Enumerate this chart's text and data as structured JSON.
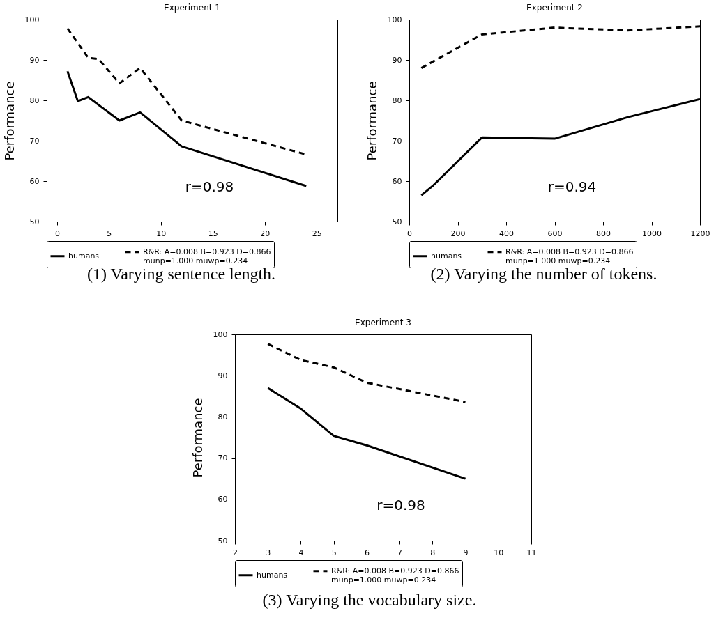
{
  "chart_data": [
    {
      "type": "line",
      "title": "Experiment 1",
      "ylabel": "Performance",
      "xlim": [
        -1,
        27
      ],
      "xticks": [
        0,
        5,
        10,
        15,
        20,
        25
      ],
      "ylim": [
        50,
        100
      ],
      "yticks": [
        50,
        60,
        70,
        80,
        90,
        100
      ],
      "grid": false,
      "legend": "bottom",
      "series": [
        {
          "name": "humans",
          "color": "#000000",
          "line_style": "solid",
          "x": [
            1,
            2,
            3,
            6,
            8,
            12,
            24
          ],
          "values": [
            87.2,
            79.8,
            80.8,
            75,
            77,
            68.6,
            58.8
          ]
        },
        {
          "name": "R&R: A=0.008 B=0.923 D=0.866\n munp=1.000 muwp=0.234",
          "color": "#000000",
          "line_style": "dashed",
          "x": [
            1,
            3,
            4,
            6,
            8,
            12,
            24
          ],
          "values": [
            97.8,
            90.5,
            90.2,
            84.2,
            88,
            75,
            66.6
          ]
        }
      ],
      "annotations": [
        "r=0.98",
        "(1) Varying sentence length."
      ]
    },
    {
      "type": "line",
      "title": "Experiment 2",
      "ylabel": "Performance",
      "xlim": [
        0,
        1200
      ],
      "xticks": [
        0,
        200,
        400,
        600,
        800,
        1000,
        1200
      ],
      "ylim": [
        50,
        100
      ],
      "yticks": [
        50,
        60,
        70,
        80,
        90,
        100
      ],
      "grid": false,
      "legend": "bottom",
      "series": [
        {
          "name": "humans",
          "color": "#000000",
          "line_style": "solid",
          "x": [
            50,
            100,
            300,
            600,
            900,
            1200
          ],
          "values": [
            56.5,
            59,
            70.8,
            70.5,
            75.8,
            80.3
          ]
        },
        {
          "name": "R&R: A=0.008 B=0.923 D=0.866\n munp=1.000 muwp=0.234",
          "color": "#000000",
          "line_style": "dashed",
          "x": [
            50,
            300,
            600,
            900,
            1200
          ],
          "values": [
            88,
            96.3,
            98,
            97.3,
            98.3
          ]
        }
      ],
      "annotations": [
        "r=0.94",
        "(2) Varying the number of tokens."
      ]
    },
    {
      "type": "line",
      "title": "Experiment 3",
      "ylabel": "Performance",
      "xlim": [
        2,
        11
      ],
      "xticks": [
        2,
        3,
        4,
        5,
        6,
        7,
        8,
        9,
        10,
        11
      ],
      "ylim": [
        50,
        100
      ],
      "yticks": [
        50,
        60,
        70,
        80,
        90,
        100
      ],
      "grid": false,
      "legend": "bottom",
      "series": [
        {
          "name": "humans",
          "color": "#000000",
          "line_style": "solid",
          "x": [
            3,
            4,
            5,
            6,
            9
          ],
          "values": [
            87,
            82,
            75.4,
            73.1,
            65
          ]
        },
        {
          "name": "R&R: A=0.008 B=0.923 D=0.866\n munp=1.000 muwp=0.234",
          "color": "#000000",
          "line_style": "dashed",
          "x": [
            3,
            4,
            5,
            6,
            9
          ],
          "values": [
            97.7,
            93.8,
            92,
            88.3,
            83.6
          ]
        }
      ],
      "annotations": [
        "r=0.98",
        "(3) Varying the vocabulary size."
      ]
    }
  ]
}
